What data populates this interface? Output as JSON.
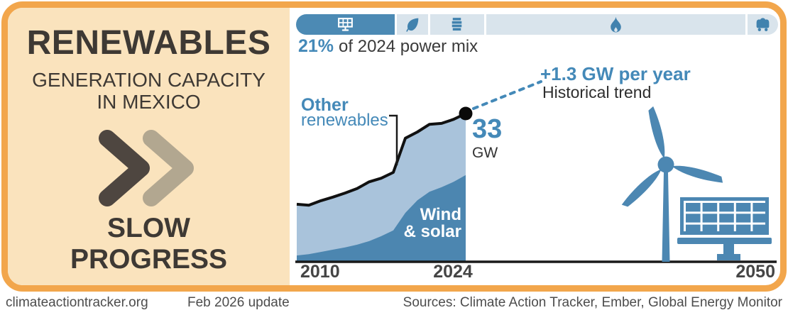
{
  "left_panel": {
    "title": "RENEWABLES",
    "subtitle_line1": "GENERATION CAPACITY",
    "subtitle_line2": "IN MEXICO",
    "verdict_line1": "SLOW",
    "verdict_line2": "PROGRESS"
  },
  "power_mix": {
    "caption_value": "21%",
    "caption_text": "of 2024 power mix",
    "segments": [
      {
        "name": "renewables",
        "icon": "solar-panel-icon",
        "share": 20.7,
        "active": true
      },
      {
        "name": "bioenergy",
        "icon": "leaf-icon",
        "share": 3.4,
        "active": false
      },
      {
        "name": "oil",
        "icon": "oil-barrel-icon",
        "share": 9.2,
        "active": false
      },
      {
        "name": "gas",
        "icon": "gas-flame-icon",
        "share": 61.7,
        "active": false
      },
      {
        "name": "coal",
        "icon": "coal-cart-icon",
        "share": 3.2,
        "active": false
      }
    ]
  },
  "chart_data": {
    "type": "area",
    "title": "Renewables generation capacity in Mexico",
    "unit": "GW",
    "x": [
      2010,
      2011,
      2012,
      2013,
      2014,
      2015,
      2016,
      2017,
      2018,
      2019,
      2020,
      2021,
      2022,
      2023,
      2024
    ],
    "series": [
      {
        "name": "Wind & solar",
        "color": "#4C86B0",
        "values": [
          1.4,
          1.7,
          2.2,
          2.7,
          3.2,
          3.8,
          4.6,
          5.7,
          7.0,
          10.9,
          13.7,
          15.6,
          16.6,
          17.8,
          19.3
        ]
      },
      {
        "name": "Total renewables",
        "color": "#A9C3DB",
        "values": [
          12.8,
          12.6,
          13.6,
          14.4,
          15.3,
          16.3,
          17.8,
          18.6,
          19.9,
          27.5,
          28.9,
          30.6,
          30.8,
          31.7,
          33.0
        ]
      }
    ],
    "end_label": {
      "value": "33",
      "unit": "GW"
    },
    "stack_labels": {
      "top_bold": "Other",
      "top_regular": "renewables",
      "bottom_line1": "Wind",
      "bottom_line2": "& solar"
    },
    "trend_annotation": {
      "headline": "+1.3 GW per year",
      "sub": "Historical trend"
    },
    "xticks": [
      "2010",
      "2024",
      "2050"
    ],
    "xlim": [
      2010,
      2050
    ],
    "ylim": [
      0,
      35
    ],
    "grid": false
  },
  "footer": {
    "site": "climateactiontracker.org",
    "update": "Feb 2026 update",
    "sources": "Sources: Climate Action Tracker, Ember, Global Energy Monitor"
  },
  "colors": {
    "frame_orange": "#F2A64C",
    "panel_peach": "#FAE3BD",
    "text_dark": "#3E3934",
    "accent_blue": "#4489B8",
    "area_light": "#A9C3DB",
    "area_dark": "#4C86B0",
    "mix_inactive": "#D9E4EC"
  }
}
